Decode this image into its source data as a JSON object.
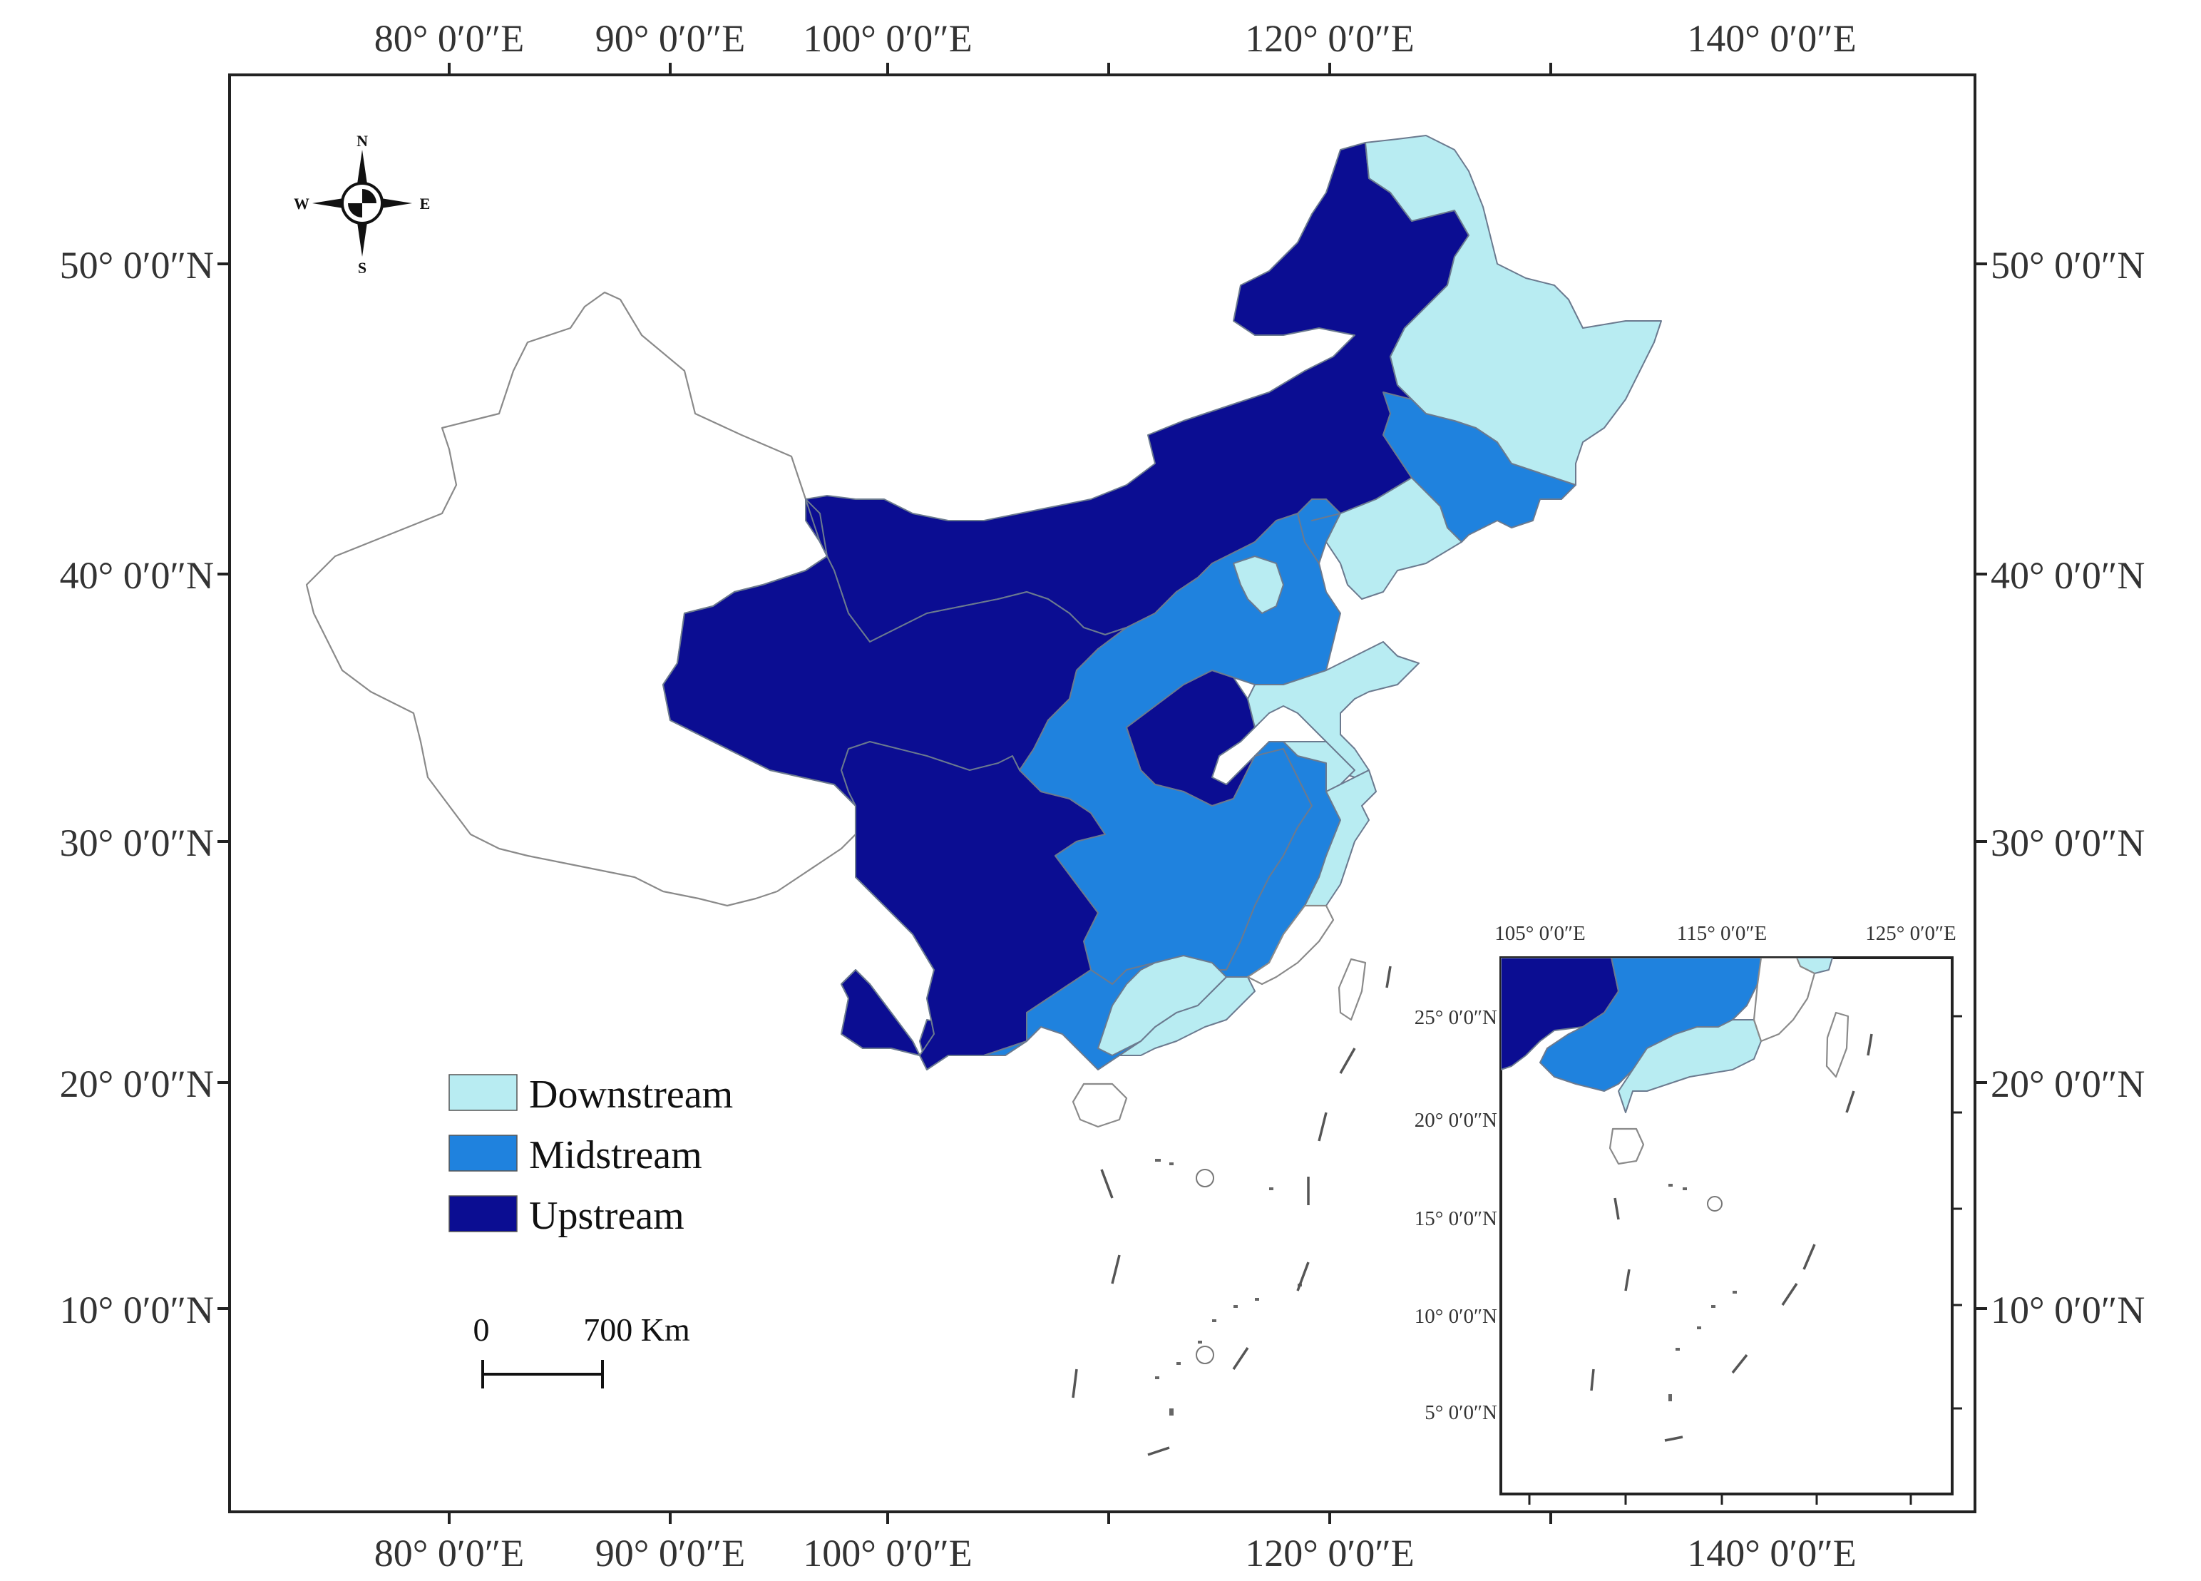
{
  "map": {
    "lon_ticks": [
      "80° 0′0″E",
      "90° 0′0″E",
      "100° 0′0″E",
      "120° 0′0″E",
      "140° 0′0″E"
    ],
    "lat_ticks": [
      "50° 0′0″N",
      "40° 0′0″N",
      "30° 0′0″N",
      "20° 0′0″N",
      "10° 0′0″N"
    ],
    "compass": {
      "n": "N",
      "s": "S",
      "e": "E",
      "w": "W"
    },
    "legend": [
      {
        "label": "Downstream",
        "color": "#b8ecf2"
      },
      {
        "label": "Midstream",
        "color": "#1f82de"
      },
      {
        "label": "Upstream",
        "color": "#0b0d92"
      }
    ],
    "scale_bar": {
      "start": "0",
      "end": "700 Km"
    },
    "inset": {
      "lon_ticks": [
        "105° 0′0″E",
        "115° 0′0″E",
        "125° 0′0″E"
      ],
      "lat_ticks": [
        "25° 0′0″N",
        "20° 0′0″N",
        "15° 0′0″N",
        "10° 0′0″N",
        "5° 0′0″N"
      ]
    }
  }
}
